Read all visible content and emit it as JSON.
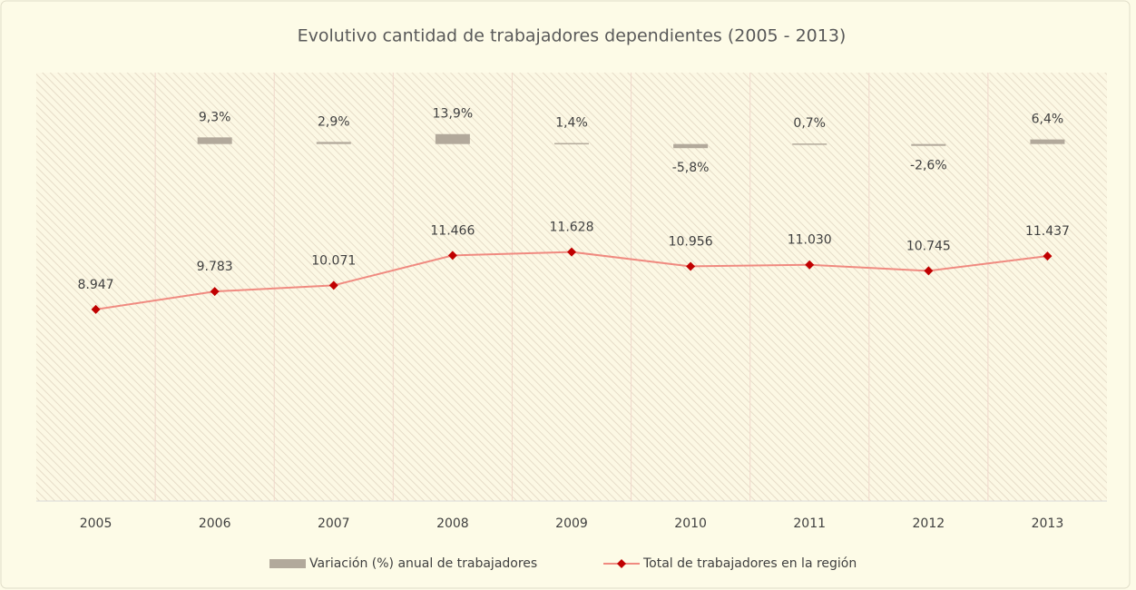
{
  "chart_data": {
    "type": "bar-line",
    "title": "Evolutivo cantidad de trabajadores dependientes (2005 - 2013)",
    "categories": [
      "2005",
      "2006",
      "2007",
      "2008",
      "2009",
      "2010",
      "2011",
      "2012",
      "2013"
    ],
    "series": [
      {
        "name": "Variación (%) anual de trabajadores",
        "type": "bar",
        "axis": "y2",
        "color": "#b2a99b",
        "values": [
          null,
          9.3,
          2.9,
          13.9,
          1.4,
          -5.8,
          0.7,
          -2.6,
          6.4
        ],
        "value_labels": [
          null,
          "9,3%",
          "2,9%",
          "13,9%",
          "1,4%",
          "-5,8%",
          "0,7%",
          "-2,6%",
          "6,4%"
        ]
      },
      {
        "name": "Total de trabajadores en la región",
        "type": "line",
        "color": "#f08a80",
        "marker_color": "#c00000",
        "values": [
          8947,
          9783,
          10071,
          11466,
          11628,
          10956,
          11030,
          10745,
          11437
        ],
        "value_labels": [
          "8.947",
          "9.783",
          "10.071",
          "11.466",
          "11.628",
          "10.956",
          "11.030",
          "10.745",
          "11.437"
        ]
      }
    ],
    "ylim": [
      0,
      20000
    ],
    "y2lim": [
      -500,
      100
    ],
    "legend": "bottom"
  }
}
